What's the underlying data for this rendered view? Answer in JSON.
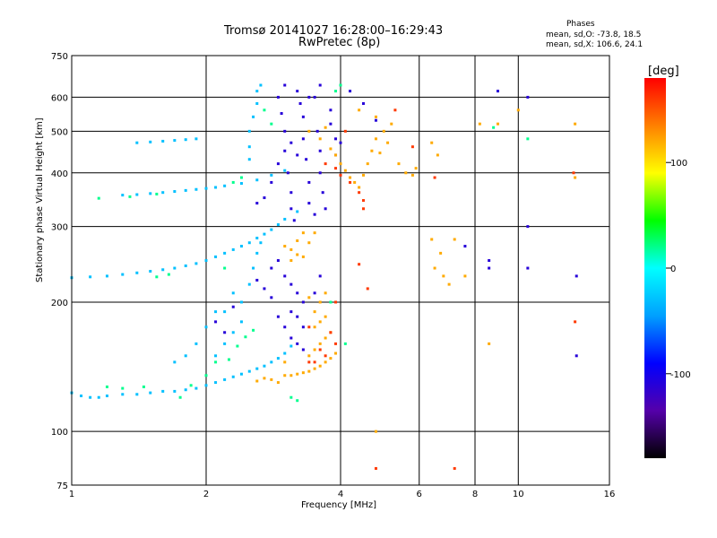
{
  "title": "Tromsø 20141027 16:28:00–16:29:43",
  "subtitle": "RwPretec (8p)",
  "phases": {
    "title": "Phases",
    "o_line": "mean, sd,O: -73.8, 18.5",
    "x_line": "mean, sd,X: 106.6, 24.1"
  },
  "chart_data": {
    "type": "scatter",
    "xlabel": "Frequency [MHz]",
    "ylabel": "Stationary phase Virtual Height [km]",
    "xscale": "log",
    "yscale": "log",
    "xlim": [
      1,
      16
    ],
    "ylim": [
      75,
      750
    ],
    "xticks": [
      1,
      2,
      4,
      6,
      8,
      10,
      16
    ],
    "yticks": [
      75,
      100,
      200,
      300,
      400,
      500,
      600,
      750
    ],
    "grid": true,
    "colorbar": {
      "label": "[deg]",
      "range": [
        -180,
        180
      ],
      "ticks": [
        100,
        0,
        -100
      ],
      "colors": [
        "#000000",
        "#5500aa",
        "#0000ff",
        "#00a0ff",
        "#00ffff",
        "#00ff00",
        "#ffff00",
        "#ff8000",
        "#ff0000"
      ]
    },
    "series": [
      {
        "phase_deg": -30,
        "points": [
          [
            1.0,
            123
          ],
          [
            1.05,
            121
          ],
          [
            1.1,
            120
          ],
          [
            1.15,
            120
          ],
          [
            1.2,
            121
          ],
          [
            1.3,
            122
          ],
          [
            1.4,
            122
          ],
          [
            1.5,
            123
          ],
          [
            1.6,
            124
          ],
          [
            1.7,
            124
          ],
          [
            1.8,
            125
          ],
          [
            1.9,
            126
          ],
          [
            2.0,
            128
          ],
          [
            2.1,
            130
          ],
          [
            2.2,
            132
          ],
          [
            2.3,
            134
          ],
          [
            2.4,
            136
          ],
          [
            2.5,
            138
          ],
          [
            2.6,
            140
          ],
          [
            2.7,
            142
          ],
          [
            2.8,
            145
          ],
          [
            2.9,
            148
          ],
          [
            3.0,
            152
          ],
          [
            3.1,
            158
          ],
          [
            1.0,
            228
          ],
          [
            1.1,
            229
          ],
          [
            1.2,
            230
          ],
          [
            1.3,
            232
          ],
          [
            1.4,
            234
          ],
          [
            1.5,
            236
          ],
          [
            1.6,
            238
          ],
          [
            1.7,
            240
          ],
          [
            1.8,
            243
          ],
          [
            1.9,
            246
          ],
          [
            2.0,
            250
          ],
          [
            2.1,
            255
          ],
          [
            2.2,
            260
          ],
          [
            2.3,
            265
          ],
          [
            2.4,
            270
          ],
          [
            2.5,
            275
          ],
          [
            2.6,
            282
          ],
          [
            2.7,
            288
          ],
          [
            2.8,
            295
          ],
          [
            2.9,
            303
          ],
          [
            3.0,
            312
          ],
          [
            3.2,
            325
          ],
          [
            1.3,
            355
          ],
          [
            1.4,
            356
          ],
          [
            1.5,
            358
          ],
          [
            1.6,
            360
          ],
          [
            1.7,
            362
          ],
          [
            1.8,
            364
          ],
          [
            1.9,
            366
          ],
          [
            2.0,
            368
          ],
          [
            2.1,
            370
          ],
          [
            2.2,
            373
          ],
          [
            2.4,
            378
          ],
          [
            2.6,
            385
          ],
          [
            2.8,
            395
          ],
          [
            3.0,
            405
          ],
          [
            1.4,
            470
          ],
          [
            1.5,
            472
          ],
          [
            1.6,
            474
          ],
          [
            1.7,
            476
          ],
          [
            1.8,
            478
          ],
          [
            1.9,
            480
          ],
          [
            2.5,
            430
          ],
          [
            2.5,
            460
          ],
          [
            2.5,
            500
          ],
          [
            2.55,
            540
          ],
          [
            2.6,
            580
          ],
          [
            2.6,
            620
          ],
          [
            2.65,
            640
          ],
          [
            2.4,
            180
          ],
          [
            2.4,
            200
          ],
          [
            2.5,
            220
          ],
          [
            2.55,
            240
          ],
          [
            2.6,
            260
          ],
          [
            2.65,
            275
          ],
          [
            2.2,
            160
          ],
          [
            2.3,
            170
          ],
          [
            2.1,
            150
          ],
          [
            2.2,
            190
          ],
          [
            2.3,
            210
          ],
          [
            2.0,
            175
          ],
          [
            2.1,
            190
          ],
          [
            1.9,
            160
          ],
          [
            1.8,
            150
          ],
          [
            1.7,
            145
          ]
        ]
      },
      {
        "phase_deg": -110,
        "points": [
          [
            2.9,
            600
          ],
          [
            2.95,
            550
          ],
          [
            3.0,
            500
          ],
          [
            3.0,
            450
          ],
          [
            3.05,
            400
          ],
          [
            3.1,
            360
          ],
          [
            3.1,
            330
          ],
          [
            3.15,
            310
          ],
          [
            3.2,
            620
          ],
          [
            3.25,
            580
          ],
          [
            3.3,
            540
          ],
          [
            3.3,
            480
          ],
          [
            3.35,
            430
          ],
          [
            3.4,
            380
          ],
          [
            3.4,
            340
          ],
          [
            3.5,
            320
          ],
          [
            3.5,
            600
          ],
          [
            3.55,
            500
          ],
          [
            3.6,
            450
          ],
          [
            3.6,
            400
          ],
          [
            3.65,
            360
          ],
          [
            3.7,
            330
          ],
          [
            3.3,
            200
          ],
          [
            3.2,
            210
          ],
          [
            3.1,
            220
          ],
          [
            3.0,
            230
          ],
          [
            3.1,
            190
          ],
          [
            3.2,
            185
          ],
          [
            3.3,
            175
          ],
          [
            3.0,
            175
          ],
          [
            2.9,
            185
          ],
          [
            2.8,
            205
          ],
          [
            2.7,
            215
          ],
          [
            2.6,
            225
          ],
          [
            2.8,
            240
          ],
          [
            2.9,
            250
          ],
          [
            2.1,
            180
          ],
          [
            2.2,
            170
          ],
          [
            2.3,
            195
          ],
          [
            3.0,
            640
          ],
          [
            3.6,
            640
          ],
          [
            3.4,
            600
          ],
          [
            3.2,
            440
          ],
          [
            3.1,
            470
          ],
          [
            2.9,
            420
          ],
          [
            2.8,
            380
          ],
          [
            2.7,
            350
          ],
          [
            2.6,
            340
          ],
          [
            3.6,
            230
          ],
          [
            3.5,
            210
          ],
          [
            10.5,
            600
          ],
          [
            10.5,
            300
          ],
          [
            9.0,
            620
          ],
          [
            7.6,
            270
          ],
          [
            8.6,
            240
          ],
          [
            8.6,
            250
          ],
          [
            13.5,
            150
          ],
          [
            13.5,
            230
          ],
          [
            10.5,
            240
          ],
          [
            4.8,
            530
          ],
          [
            4.2,
            620
          ],
          [
            4.5,
            580
          ],
          [
            3.8,
            560
          ],
          [
            3.8,
            520
          ],
          [
            3.9,
            480
          ],
          [
            3.9,
            440
          ],
          [
            4.0,
            470
          ],
          [
            3.2,
            160
          ],
          [
            3.3,
            155
          ],
          [
            3.1,
            165
          ]
        ]
      },
      {
        "phase_deg": 120,
        "points": [
          [
            3.0,
            270
          ],
          [
            3.1,
            265
          ],
          [
            3.2,
            258
          ],
          [
            3.3,
            255
          ],
          [
            3.1,
            250
          ],
          [
            3.2,
            278
          ],
          [
            3.4,
            275
          ],
          [
            3.3,
            290
          ],
          [
            3.5,
            290
          ],
          [
            3.0,
            135
          ],
          [
            3.1,
            135
          ],
          [
            3.2,
            136
          ],
          [
            3.3,
            137
          ],
          [
            3.4,
            138
          ],
          [
            3.5,
            140
          ],
          [
            3.6,
            142
          ],
          [
            3.7,
            145
          ],
          [
            3.8,
            148
          ],
          [
            3.9,
            152
          ],
          [
            3.4,
            150
          ],
          [
            3.5,
            155
          ],
          [
            3.6,
            160
          ],
          [
            3.7,
            165
          ],
          [
            3.8,
            170
          ],
          [
            3.6,
            180
          ],
          [
            3.7,
            185
          ],
          [
            3.5,
            175
          ],
          [
            3.5,
            190
          ],
          [
            3.6,
            200
          ],
          [
            3.7,
            210
          ],
          [
            3.4,
            205
          ],
          [
            3.8,
            455
          ],
          [
            3.9,
            440
          ],
          [
            4.0,
            420
          ],
          [
            4.1,
            405
          ],
          [
            4.2,
            390
          ],
          [
            4.3,
            380
          ],
          [
            4.4,
            370
          ],
          [
            4.5,
            395
          ],
          [
            4.6,
            420
          ],
          [
            4.7,
            450
          ],
          [
            4.8,
            480
          ],
          [
            5.0,
            500
          ],
          [
            5.2,
            520
          ],
          [
            5.4,
            420
          ],
          [
            5.6,
            400
          ],
          [
            5.8,
            395
          ],
          [
            5.9,
            410
          ],
          [
            3.6,
            480
          ],
          [
            3.7,
            510
          ],
          [
            3.4,
            500
          ],
          [
            2.9,
            130
          ],
          [
            2.8,
            132
          ],
          [
            2.7,
            133
          ],
          [
            2.6,
            131
          ],
          [
            3.0,
            145
          ],
          [
            4.9,
            445
          ],
          [
            5.1,
            470
          ],
          [
            4.8,
            540
          ],
          [
            4.4,
            560
          ],
          [
            6.4,
            470
          ],
          [
            6.6,
            440
          ],
          [
            8.2,
            520
          ],
          [
            9.0,
            520
          ],
          [
            10.0,
            560
          ],
          [
            6.8,
            230
          ],
          [
            6.5,
            240
          ],
          [
            7.2,
            280
          ],
          [
            7.0,
            220
          ],
          [
            8.6,
            160
          ],
          [
            7.6,
            230
          ],
          [
            4.8,
            100
          ],
          [
            6.4,
            280
          ],
          [
            6.7,
            260
          ],
          [
            13.4,
            520
          ],
          [
            13.4,
            390
          ]
        ]
      },
      {
        "phase_deg": 160,
        "points": [
          [
            4.2,
            380
          ],
          [
            4.0,
            395
          ],
          [
            3.9,
            410
          ],
          [
            4.4,
            360
          ],
          [
            4.5,
            345
          ],
          [
            3.8,
            170
          ],
          [
            3.9,
            160
          ],
          [
            3.7,
            150
          ],
          [
            3.6,
            155
          ],
          [
            3.5,
            145
          ],
          [
            3.4,
            145
          ],
          [
            6.5,
            390
          ],
          [
            5.3,
            560
          ],
          [
            5.8,
            460
          ],
          [
            4.4,
            245
          ],
          [
            4.8,
            82
          ],
          [
            7.2,
            82
          ],
          [
            13.4,
            180
          ],
          [
            13.3,
            400
          ],
          [
            3.4,
            175
          ],
          [
            3.9,
            200
          ],
          [
            4.6,
            215
          ],
          [
            4.1,
            500
          ],
          [
            3.7,
            420
          ],
          [
            4.5,
            330
          ]
        ]
      },
      {
        "phase_deg": 20,
        "points": [
          [
            1.2,
            127
          ],
          [
            1.3,
            126
          ],
          [
            1.45,
            127
          ],
          [
            1.55,
            229
          ],
          [
            1.65,
            232
          ],
          [
            2.2,
            240
          ],
          [
            1.75,
            120
          ],
          [
            1.85,
            128
          ],
          [
            2.25,
            147
          ],
          [
            2.35,
            158
          ],
          [
            2.45,
            166
          ],
          [
            2.55,
            172
          ],
          [
            1.15,
            349
          ],
          [
            1.35,
            352
          ],
          [
            1.55,
            357
          ],
          [
            2.7,
            560
          ],
          [
            2.8,
            520
          ],
          [
            3.8,
            200
          ],
          [
            4.1,
            160
          ],
          [
            4.0,
            640
          ],
          [
            3.9,
            620
          ],
          [
            10.5,
            480
          ],
          [
            8.8,
            510
          ],
          [
            3.1,
            120
          ],
          [
            3.2,
            118
          ],
          [
            2.0,
            135
          ],
          [
            2.1,
            145
          ],
          [
            2.3,
            380
          ],
          [
            2.4,
            390
          ]
        ]
      }
    ]
  }
}
